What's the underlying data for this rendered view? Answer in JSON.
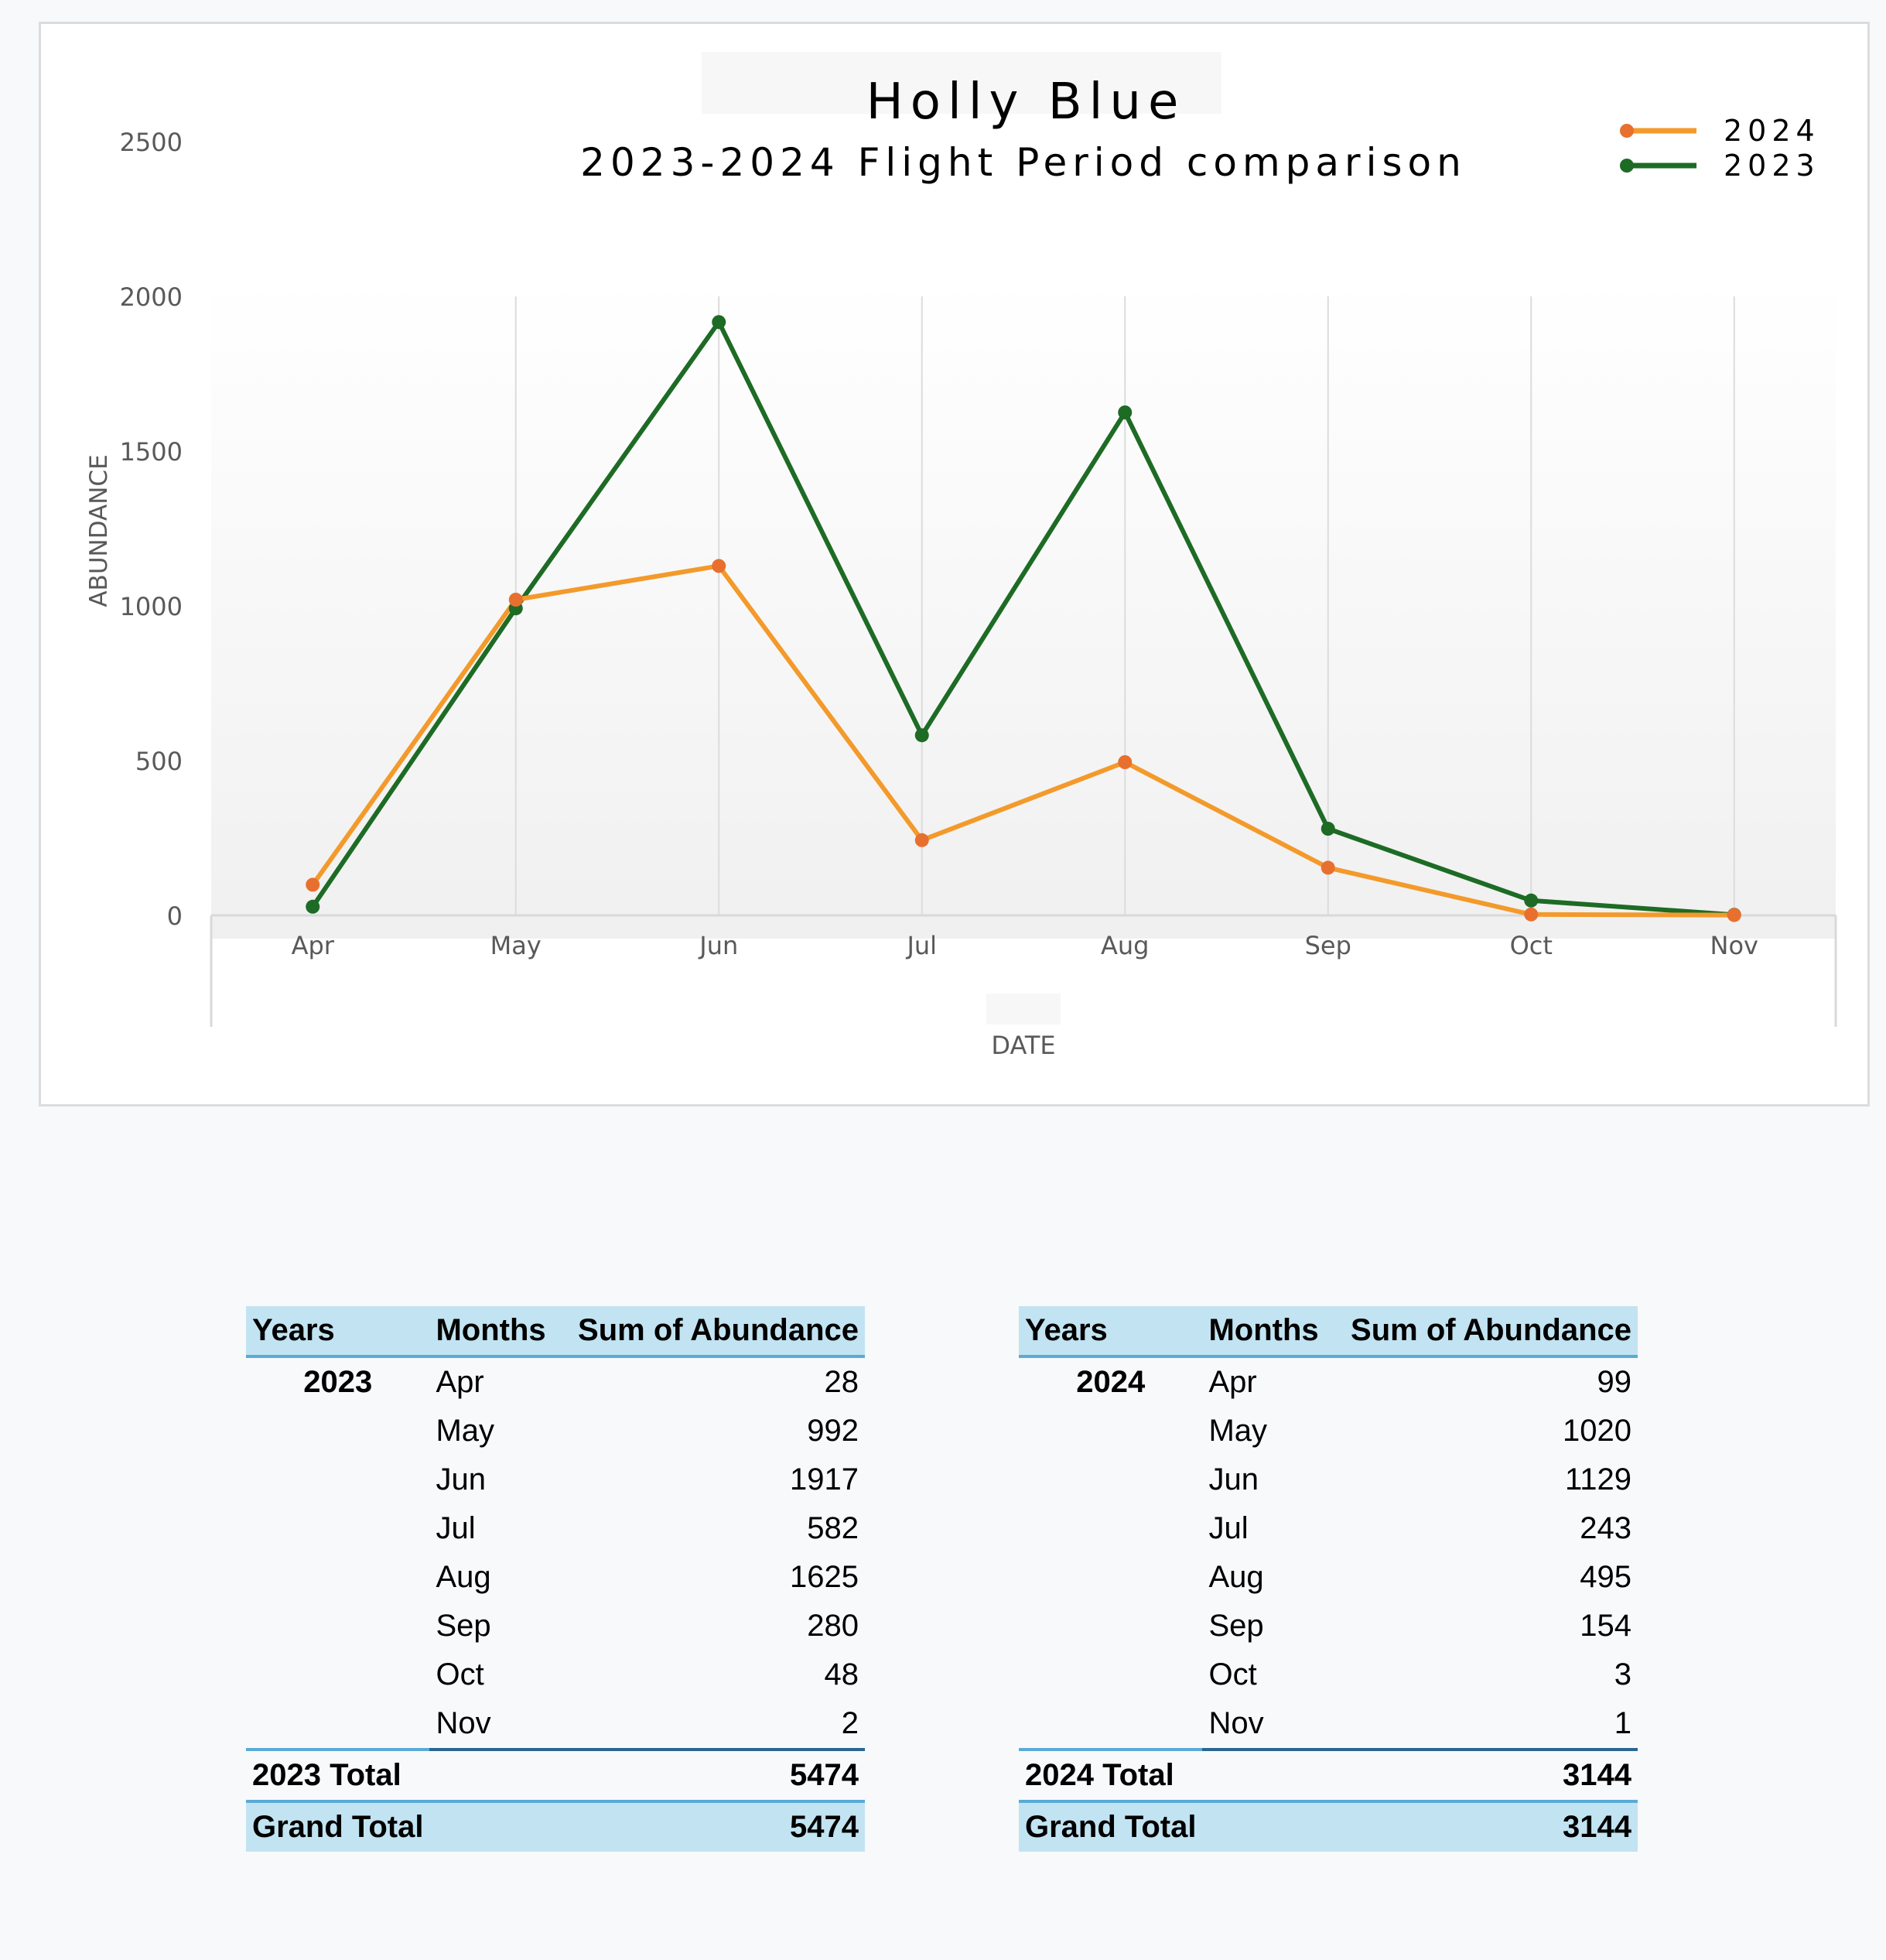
{
  "chart_data": {
    "type": "line",
    "title": "Holly Blue",
    "subtitle": "2023-2024 Flight Period comparison",
    "xlabel": "DATE",
    "ylabel": "ABUNDANCE",
    "categories": [
      "Apr",
      "May",
      "Jun",
      "Jul",
      "Aug",
      "Sep",
      "Oct",
      "Nov"
    ],
    "ylim": [
      0,
      2500
    ],
    "yticks": [
      "0",
      "500",
      "1000",
      "1500",
      "2000",
      "2500"
    ],
    "legend_position": "top-right",
    "series": [
      {
        "name": "2024",
        "values": [
          99,
          1020,
          1129,
          243,
          495,
          154,
          3,
          1
        ],
        "line_color": "#f39a2b",
        "marker_color": "#e8702f"
      },
      {
        "name": "2023",
        "values": [
          28,
          992,
          1917,
          582,
          1625,
          280,
          48,
          2
        ],
        "line_color": "#1d6b25",
        "marker_color": "#1d6b25"
      }
    ]
  },
  "tables": {
    "header": {
      "years": "Years",
      "months": "Months",
      "sum": "Sum of Abundance"
    },
    "t2023": {
      "year": "2023",
      "rows": [
        {
          "month": "Apr",
          "value": "28"
        },
        {
          "month": "May",
          "value": "992"
        },
        {
          "month": "Jun",
          "value": "1917"
        },
        {
          "month": "Jul",
          "value": "582"
        },
        {
          "month": "Aug",
          "value": "1625"
        },
        {
          "month": "Sep",
          "value": "280"
        },
        {
          "month": "Oct",
          "value": "48"
        },
        {
          "month": "Nov",
          "value": "2"
        }
      ],
      "total_label": "2023 Total",
      "total_value": "5474",
      "grand_label": "Grand Total",
      "grand_value": "5474"
    },
    "t2024": {
      "year": "2024",
      "rows": [
        {
          "month": "Apr",
          "value": "99"
        },
        {
          "month": "May",
          "value": "1020"
        },
        {
          "month": "Jun",
          "value": "1129"
        },
        {
          "month": "Jul",
          "value": "243"
        },
        {
          "month": "Aug",
          "value": "495"
        },
        {
          "month": "Sep",
          "value": "154"
        },
        {
          "month": "Oct",
          "value": "3"
        },
        {
          "month": "Nov",
          "value": "1"
        }
      ],
      "total_label": "2024 Total",
      "total_value": "3144",
      "grand_label": "Grand Total",
      "grand_value": "3144"
    }
  }
}
